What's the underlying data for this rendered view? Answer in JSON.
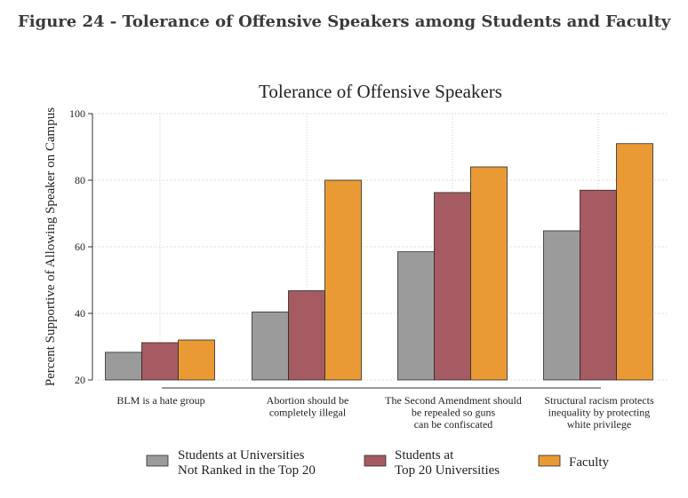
{
  "figure_title": "Figure 24 - Tolerance of Offensive Speakers among Students and Faculty",
  "chart_data": {
    "type": "bar",
    "title": "Tolerance of Offensive Speakers",
    "ylabel": "Percent Supportive of Allowing Speaker on Campus",
    "xlabel": "",
    "ylim": [
      20,
      100
    ],
    "yticks": [
      20,
      40,
      60,
      80,
      100
    ],
    "grid": true,
    "legend_position": "bottom",
    "categories": [
      [
        "BLM is a hate group"
      ],
      [
        "Abortion should be",
        "completely illegal"
      ],
      [
        "The Second Amendment should",
        "be repealed so guns",
        "can be confiscated"
      ],
      [
        "Structural racism protects",
        "inequality by protecting",
        "white privilege"
      ]
    ],
    "series": [
      {
        "name": [
          "Students at Universities",
          "Not Ranked in the Top 20"
        ],
        "color": "#9b9b9b",
        "values": [
          28.3,
          40.4,
          58.5,
          64.8
        ]
      },
      {
        "name": [
          "Students at",
          "Top 20 Universities"
        ],
        "color": "#a55b61",
        "values": [
          31.2,
          46.8,
          76.3,
          77.0
        ]
      },
      {
        "name": [
          "Faculty"
        ],
        "color": "#e99a35",
        "values": [
          32.0,
          80.0,
          84.0,
          91.0
        ]
      }
    ]
  }
}
